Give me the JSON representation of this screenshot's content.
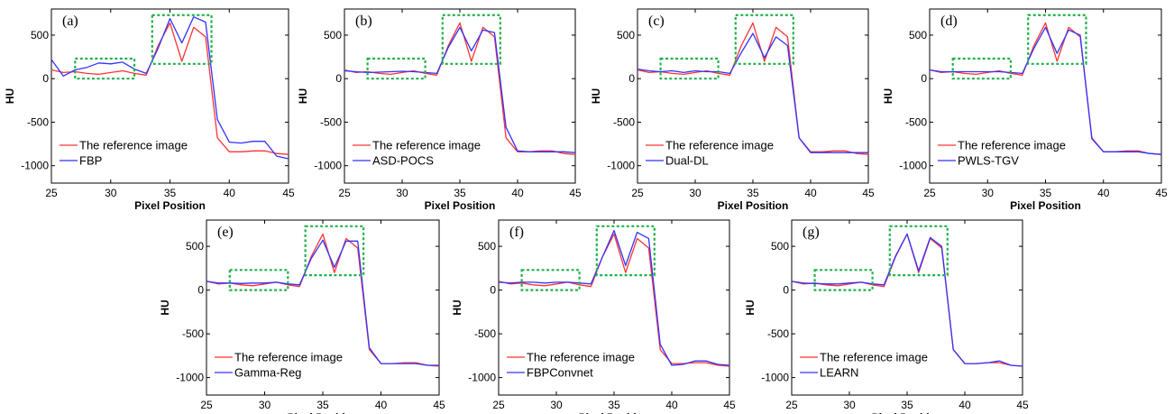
{
  "chart_data": [
    {
      "type": "line",
      "panel_label": "(a)",
      "xlabel": "Pixel Position",
      "ylabel": "HU",
      "xlim": [
        25,
        45
      ],
      "ylim": [
        -1200,
        800
      ],
      "xticks": [
        25,
        30,
        35,
        40,
        45
      ],
      "yticks": [
        -1000,
        -500,
        0,
        500
      ],
      "legend_position": "bottom-left",
      "highlight_boxes": [
        {
          "x": [
            27,
            32
          ],
          "y": [
            0,
            230
          ]
        },
        {
          "x": [
            33.5,
            38.5
          ],
          "y": [
            170,
            730
          ]
        }
      ],
      "x": [
        25,
        26,
        27,
        28,
        29,
        30,
        31,
        32,
        33,
        34,
        35,
        36,
        37,
        38,
        39,
        40,
        41,
        42,
        43,
        44,
        45
      ],
      "series": [
        {
          "name": "The reference image",
          "color": "#ff3333",
          "values": [
            100,
            70,
            80,
            60,
            50,
            70,
            90,
            60,
            40,
            380,
            640,
            200,
            590,
            480,
            -680,
            -840,
            -840,
            -830,
            -830,
            -860,
            -870
          ]
        },
        {
          "name": "FBP",
          "color": "#3333ff",
          "values": [
            220,
            30,
            100,
            130,
            180,
            170,
            190,
            110,
            60,
            350,
            690,
            410,
            710,
            650,
            -470,
            -730,
            -740,
            -720,
            -720,
            -890,
            -920
          ]
        }
      ]
    },
    {
      "type": "line",
      "panel_label": "(b)",
      "xlabel": "Pixel Position",
      "ylabel": "HU",
      "xlim": [
        25,
        45
      ],
      "ylim": [
        -1200,
        800
      ],
      "xticks": [
        25,
        30,
        35,
        40,
        45
      ],
      "yticks": [
        -1000,
        -500,
        0,
        500
      ],
      "legend_position": "bottom-left",
      "highlight_boxes": [
        {
          "x": [
            27,
            32
          ],
          "y": [
            0,
            230
          ]
        },
        {
          "x": [
            33.5,
            38.5
          ],
          "y": [
            170,
            730
          ]
        }
      ],
      "x": [
        25,
        26,
        27,
        28,
        29,
        30,
        31,
        32,
        33,
        34,
        35,
        36,
        37,
        38,
        39,
        40,
        41,
        42,
        43,
        44,
        45
      ],
      "series": [
        {
          "name": "The reference image",
          "color": "#ff3333",
          "values": [
            100,
            70,
            80,
            60,
            50,
            70,
            90,
            60,
            40,
            380,
            640,
            200,
            590,
            480,
            -680,
            -840,
            -840,
            -830,
            -830,
            -860,
            -870
          ]
        },
        {
          "name": "ASD-POCS",
          "color": "#3333ff",
          "values": [
            90,
            80,
            70,
            75,
            80,
            85,
            80,
            70,
            60,
            360,
            590,
            320,
            560,
            530,
            -560,
            -830,
            -840,
            -840,
            -840,
            -840,
            -850
          ]
        }
      ]
    },
    {
      "type": "line",
      "panel_label": "(c)",
      "xlabel": "Pixel Position",
      "ylabel": "HU",
      "xlim": [
        25,
        45
      ],
      "ylim": [
        -1200,
        800
      ],
      "xticks": [
        25,
        30,
        35,
        40,
        45
      ],
      "yticks": [
        -1000,
        -500,
        0,
        500
      ],
      "legend_position": "bottom-left",
      "highlight_boxes": [
        {
          "x": [
            27,
            32
          ],
          "y": [
            0,
            230
          ]
        },
        {
          "x": [
            33.5,
            38.5
          ],
          "y": [
            170,
            730
          ]
        }
      ],
      "x": [
        25,
        26,
        27,
        28,
        29,
        30,
        31,
        32,
        33,
        34,
        35,
        36,
        37,
        38,
        39,
        40,
        41,
        42,
        43,
        44,
        45
      ],
      "series": [
        {
          "name": "The reference image",
          "color": "#ff3333",
          "values": [
            100,
            70,
            80,
            60,
            50,
            70,
            90,
            60,
            40,
            380,
            640,
            200,
            590,
            480,
            -680,
            -840,
            -840,
            -830,
            -830,
            -860,
            -870
          ]
        },
        {
          "name": "Dual-DL",
          "color": "#3333ff",
          "values": [
            110,
            90,
            80,
            90,
            70,
            90,
            80,
            80,
            60,
            300,
            520,
            240,
            480,
            380,
            -680,
            -850,
            -850,
            -850,
            -850,
            -850,
            -850
          ]
        }
      ]
    },
    {
      "type": "line",
      "panel_label": "(d)",
      "xlabel": "Pixel Position",
      "ylabel": "HU",
      "xlim": [
        25,
        45
      ],
      "ylim": [
        -1200,
        800
      ],
      "xticks": [
        25,
        30,
        35,
        40,
        45
      ],
      "yticks": [
        -1000,
        -500,
        0,
        500
      ],
      "legend_position": "bottom-left",
      "highlight_boxes": [
        {
          "x": [
            27,
            32
          ],
          "y": [
            0,
            230
          ]
        },
        {
          "x": [
            33.5,
            38.5
          ],
          "y": [
            170,
            730
          ]
        }
      ],
      "x": [
        25,
        26,
        27,
        28,
        29,
        30,
        31,
        32,
        33,
        34,
        35,
        36,
        37,
        38,
        39,
        40,
        41,
        42,
        43,
        44,
        45
      ],
      "series": [
        {
          "name": "The reference image",
          "color": "#ff3333",
          "values": [
            100,
            70,
            80,
            60,
            50,
            70,
            90,
            60,
            40,
            380,
            640,
            200,
            590,
            480,
            -680,
            -840,
            -840,
            -830,
            -830,
            -860,
            -870
          ]
        },
        {
          "name": "PWLS-TGV",
          "color": "#3333ff",
          "values": [
            100,
            80,
            80,
            80,
            80,
            80,
            80,
            70,
            60,
            350,
            590,
            290,
            560,
            500,
            -690,
            -840,
            -840,
            -840,
            -840,
            -860,
            -870
          ]
        }
      ]
    },
    {
      "type": "line",
      "panel_label": "(e)",
      "xlabel": "Pixel Position",
      "ylabel": "HU",
      "xlim": [
        25,
        45
      ],
      "ylim": [
        -1200,
        800
      ],
      "xticks": [
        25,
        30,
        35,
        40,
        45
      ],
      "yticks": [
        -1000,
        -500,
        0,
        500
      ],
      "legend_position": "bottom-left",
      "highlight_boxes": [
        {
          "x": [
            27,
            32
          ],
          "y": [
            0,
            230
          ]
        },
        {
          "x": [
            33.5,
            38.5
          ],
          "y": [
            170,
            730
          ]
        }
      ],
      "x": [
        25,
        26,
        27,
        28,
        29,
        30,
        31,
        32,
        33,
        34,
        35,
        36,
        37,
        38,
        39,
        40,
        41,
        42,
        43,
        44,
        45
      ],
      "series": [
        {
          "name": "The reference image",
          "color": "#ff3333",
          "values": [
            100,
            70,
            80,
            60,
            50,
            70,
            90,
            60,
            40,
            380,
            640,
            200,
            590,
            480,
            -680,
            -840,
            -840,
            -830,
            -830,
            -860,
            -870
          ]
        },
        {
          "name": "Gamma-Reg",
          "color": "#3333ff",
          "values": [
            100,
            80,
            80,
            75,
            80,
            80,
            90,
            70,
            60,
            360,
            570,
            260,
            560,
            560,
            -660,
            -840,
            -840,
            -840,
            -840,
            -860,
            -860
          ]
        }
      ]
    },
    {
      "type": "line",
      "panel_label": "(f)",
      "xlabel": "Pixel Position",
      "ylabel": "HU",
      "xlim": [
        25,
        45
      ],
      "ylim": [
        -1200,
        800
      ],
      "xticks": [
        25,
        30,
        35,
        40,
        45
      ],
      "yticks": [
        -1000,
        -500,
        0,
        500
      ],
      "legend_position": "bottom-left",
      "highlight_boxes": [
        {
          "x": [
            27,
            32
          ],
          "y": [
            0,
            230
          ]
        },
        {
          "x": [
            33.5,
            38.5
          ],
          "y": [
            170,
            730
          ]
        }
      ],
      "x": [
        25,
        26,
        27,
        28,
        29,
        30,
        31,
        32,
        33,
        34,
        35,
        36,
        37,
        38,
        39,
        40,
        41,
        42,
        43,
        44,
        45
      ],
      "series": [
        {
          "name": "The reference image",
          "color": "#ff3333",
          "values": [
            100,
            70,
            80,
            60,
            50,
            70,
            90,
            60,
            40,
            380,
            640,
            200,
            590,
            480,
            -680,
            -840,
            -840,
            -830,
            -830,
            -860,
            -870
          ]
        },
        {
          "name": "FBPConvnet",
          "color": "#3333ff",
          "values": [
            90,
            80,
            90,
            90,
            80,
            90,
            90,
            80,
            70,
            380,
            680,
            280,
            660,
            590,
            -620,
            -860,
            -850,
            -810,
            -810,
            -850,
            -860
          ]
        }
      ]
    },
    {
      "type": "line",
      "panel_label": "(g)",
      "xlabel": "Pixel Position",
      "ylabel": "HU",
      "xlim": [
        25,
        45
      ],
      "ylim": [
        -1200,
        800
      ],
      "xticks": [
        25,
        30,
        35,
        40,
        45
      ],
      "yticks": [
        -1000,
        -500,
        0,
        500
      ],
      "legend_position": "bottom-left",
      "highlight_boxes": [
        {
          "x": [
            27,
            32
          ],
          "y": [
            0,
            230
          ]
        },
        {
          "x": [
            33.5,
            38.5
          ],
          "y": [
            170,
            730
          ]
        }
      ],
      "x": [
        25,
        26,
        27,
        28,
        29,
        30,
        31,
        32,
        33,
        34,
        35,
        36,
        37,
        38,
        39,
        40,
        41,
        42,
        43,
        44,
        45
      ],
      "series": [
        {
          "name": "The reference image",
          "color": "#ff3333",
          "values": [
            100,
            70,
            80,
            60,
            50,
            70,
            90,
            60,
            40,
            380,
            640,
            200,
            590,
            480,
            -680,
            -840,
            -840,
            -830,
            -830,
            -860,
            -870
          ]
        },
        {
          "name": "LEARN",
          "color": "#3333ff",
          "values": [
            100,
            80,
            75,
            70,
            70,
            80,
            90,
            70,
            60,
            390,
            640,
            220,
            600,
            500,
            -680,
            -840,
            -840,
            -830,
            -810,
            -860,
            -870
          ]
        }
      ]
    }
  ]
}
